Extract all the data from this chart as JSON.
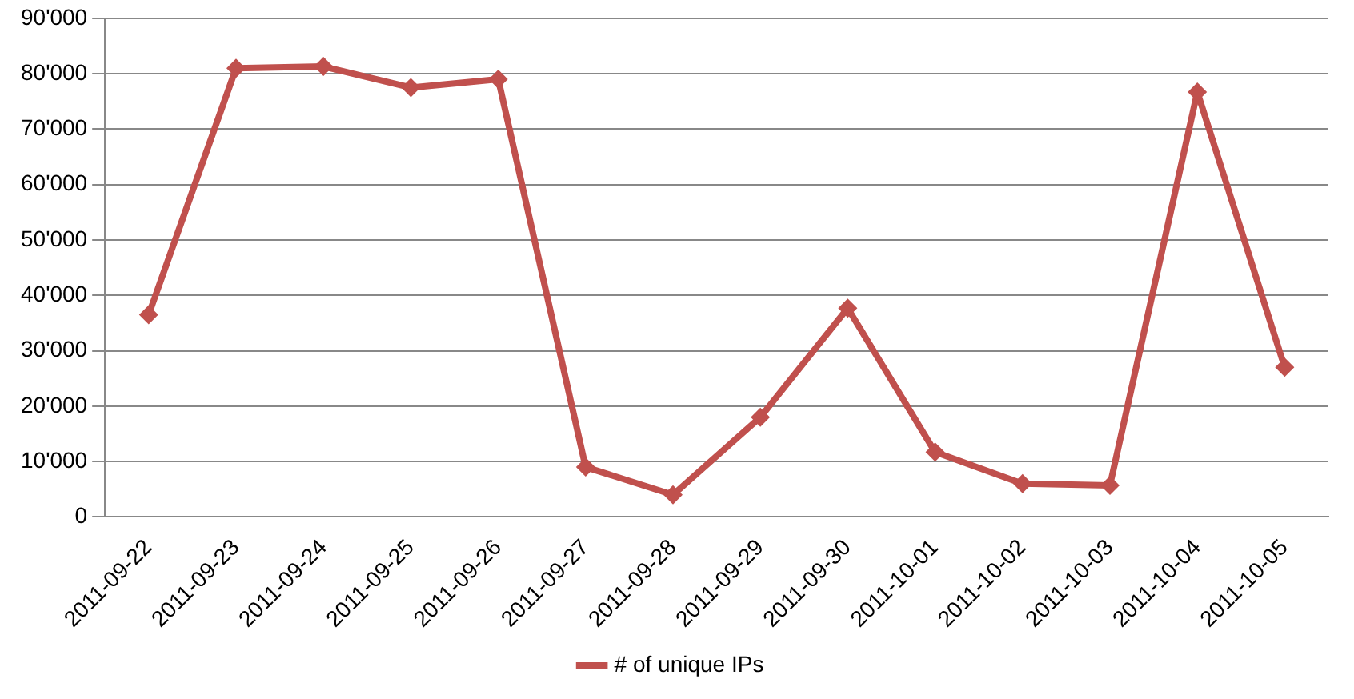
{
  "chart_data": {
    "type": "line",
    "categories": [
      "2011-09-22",
      "2011-09-23",
      "2011-09-24",
      "2011-09-25",
      "2011-09-26",
      "2011-09-27",
      "2011-09-28",
      "2011-09-29",
      "2011-09-30",
      "2011-10-01",
      "2011-10-02",
      "2011-10-03",
      "2011-10-04",
      "2011-10-05"
    ],
    "series": [
      {
        "name": "# of unique IPs",
        "color": "#c0504d",
        "values": [
          36500,
          81000,
          81300,
          77500,
          79000,
          9000,
          4000,
          18000,
          37700,
          11700,
          6000,
          5700,
          76700,
          27000
        ]
      }
    ],
    "ylim": [
      0,
      90000
    ],
    "yticks": [
      {
        "value": 0,
        "label": "0"
      },
      {
        "value": 10000,
        "label": "10'000"
      },
      {
        "value": 20000,
        "label": "20'000"
      },
      {
        "value": 30000,
        "label": "30'000"
      },
      {
        "value": 40000,
        "label": "40'000"
      },
      {
        "value": 50000,
        "label": "50'000"
      },
      {
        "value": 60000,
        "label": "60'000"
      },
      {
        "value": 70000,
        "label": "70'000"
      },
      {
        "value": 80000,
        "label": "80'000"
      },
      {
        "value": 90000,
        "label": "90'000"
      }
    ],
    "grid": "y",
    "legend": "bottom",
    "marker": "diamond",
    "line_style": "solid"
  }
}
